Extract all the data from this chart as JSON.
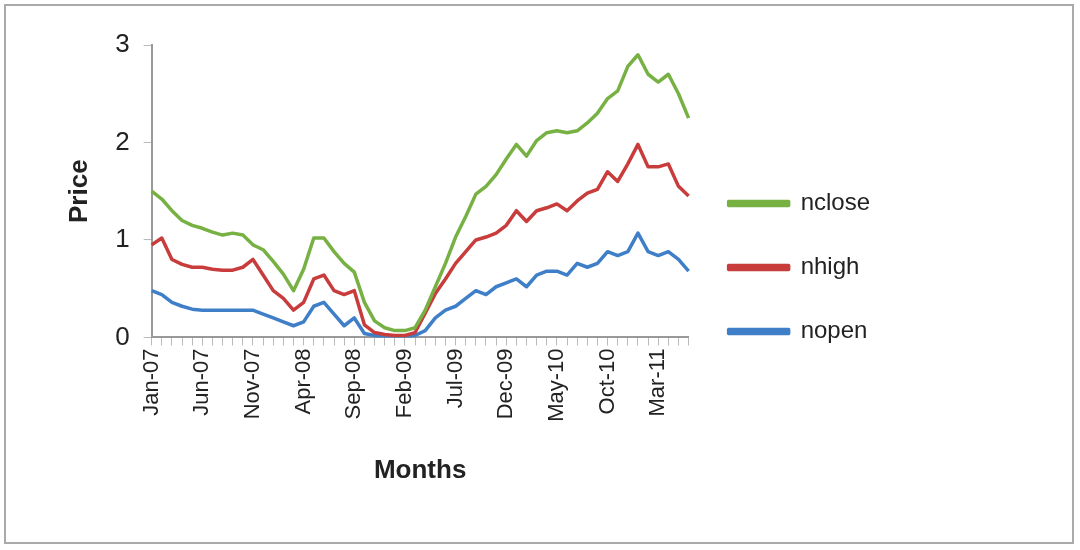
{
  "chart_data": {
    "type": "line",
    "xlabel": "Months",
    "ylabel": "Price",
    "categories": [
      "Jan-07",
      null,
      null,
      null,
      null,
      "Jun-07",
      null,
      null,
      null,
      null,
      "Nov-07",
      null,
      null,
      null,
      null,
      "Apr-08",
      null,
      null,
      null,
      null,
      "Sep-08",
      null,
      null,
      null,
      null,
      "Feb-09",
      null,
      null,
      null,
      null,
      "Jul-09",
      null,
      null,
      null,
      null,
      "Dec-09",
      null,
      null,
      null,
      null,
      "May-10",
      null,
      null,
      null,
      null,
      "Oct-10",
      null,
      null,
      null,
      null,
      "Mar-11",
      null,
      null,
      null
    ],
    "series": [
      {
        "name": "nclose",
        "color": "#77b143",
        "values": [
          1.5,
          1.42,
          1.3,
          1.2,
          1.15,
          1.12,
          1.08,
          1.05,
          1.07,
          1.05,
          0.95,
          0.9,
          0.78,
          0.65,
          0.48,
          0.7,
          1.02,
          1.02,
          0.88,
          0.76,
          0.67,
          0.36,
          0.17,
          0.1,
          0.07,
          0.07,
          0.1,
          0.28,
          0.52,
          0.76,
          1.03,
          1.24,
          1.47,
          1.55,
          1.67,
          1.83,
          1.98,
          1.86,
          2.02,
          2.1,
          2.12,
          2.1,
          2.12,
          2.2,
          2.3,
          2.45,
          2.53,
          2.78,
          2.9,
          2.7,
          2.62,
          2.7,
          2.5,
          2.25
        ]
      },
      {
        "name": "nhigh",
        "color": "#c83c3c",
        "values": [
          0.95,
          1.02,
          0.8,
          0.75,
          0.72,
          0.72,
          0.7,
          0.69,
          0.69,
          0.72,
          0.8,
          0.64,
          0.48,
          0.4,
          0.28,
          0.36,
          0.6,
          0.64,
          0.48,
          0.44,
          0.48,
          0.13,
          0.05,
          0.03,
          0.02,
          0.02,
          0.05,
          0.25,
          0.45,
          0.6,
          0.76,
          0.88,
          1.0,
          1.03,
          1.07,
          1.15,
          1.3,
          1.19,
          1.3,
          1.33,
          1.37,
          1.3,
          1.4,
          1.48,
          1.52,
          1.7,
          1.6,
          1.78,
          1.98,
          1.75,
          1.75,
          1.78,
          1.55,
          1.45
        ]
      },
      {
        "name": "nopen",
        "color": "#3f7fc8",
        "values": [
          0.48,
          0.44,
          0.36,
          0.32,
          0.29,
          0.28,
          0.28,
          0.28,
          0.28,
          0.28,
          0.28,
          0.24,
          0.2,
          0.16,
          0.12,
          0.16,
          0.32,
          0.36,
          0.24,
          0.12,
          0.2,
          0.04,
          0.02,
          0,
          0,
          0,
          0.02,
          0.07,
          0.2,
          0.28,
          0.32,
          0.4,
          0.48,
          0.44,
          0.52,
          0.56,
          0.6,
          0.52,
          0.64,
          0.68,
          0.68,
          0.64,
          0.76,
          0.72,
          0.76,
          0.88,
          0.84,
          0.88,
          1.07,
          0.88,
          0.84,
          0.88,
          0.8,
          0.68
        ]
      }
    ],
    "ylim": [
      0,
      3
    ],
    "yticks": [
      0,
      1,
      2,
      3
    ],
    "grid": false,
    "legend": "right",
    "marker": "none",
    "line_style": "solid"
  }
}
